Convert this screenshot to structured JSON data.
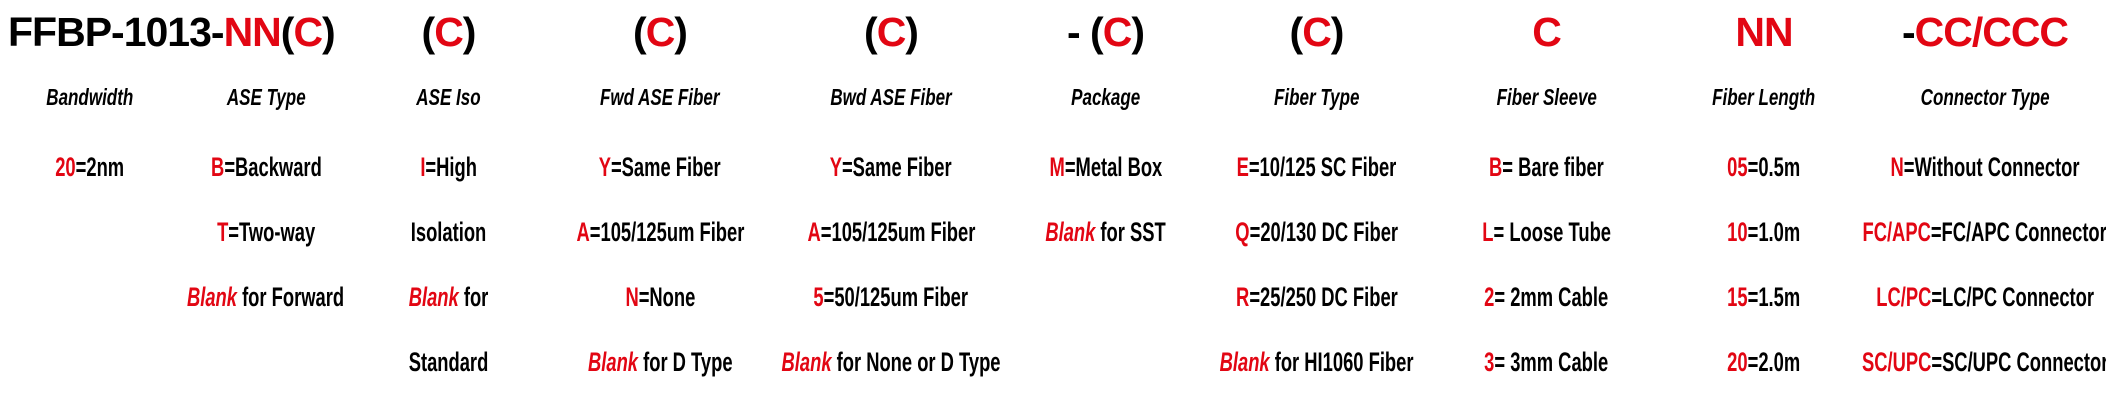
{
  "colors": {
    "red": "#e20613",
    "black": "#000000"
  },
  "code_row": [
    {
      "col": 1,
      "span": 2,
      "align": "left",
      "name": "part-number-prefix",
      "segments": [
        {
          "t": "FFBP-1013-"
        },
        {
          "t": "NN",
          "red": true
        },
        {
          "t": "("
        },
        {
          "t": "C",
          "red": true
        },
        {
          "t": ")"
        }
      ]
    },
    {
      "col": 3,
      "name": "code-ase-iso",
      "segments": [
        {
          "t": "("
        },
        {
          "t": "C",
          "red": true
        },
        {
          "t": ")"
        }
      ]
    },
    {
      "col": 4,
      "name": "code-fwd-ase-fiber",
      "segments": [
        {
          "t": "("
        },
        {
          "t": "C",
          "red": true
        },
        {
          "t": ")"
        }
      ]
    },
    {
      "col": 5,
      "name": "code-bwd-ase-fiber",
      "segments": [
        {
          "t": "("
        },
        {
          "t": "C",
          "red": true
        },
        {
          "t": ")"
        }
      ]
    },
    {
      "col": 6,
      "name": "code-package",
      "segments": [
        {
          "t": "- ("
        },
        {
          "t": "C",
          "red": true
        },
        {
          "t": ")"
        }
      ]
    },
    {
      "col": 7,
      "name": "code-fiber-type",
      "segments": [
        {
          "t": "("
        },
        {
          "t": "C",
          "red": true
        },
        {
          "t": ")"
        }
      ]
    },
    {
      "col": 8,
      "name": "code-fiber-sleeve",
      "segments": [
        {
          "t": "C",
          "red": true
        }
      ]
    },
    {
      "col": 9,
      "name": "code-fiber-length",
      "segments": [
        {
          "t": "NN",
          "red": true
        }
      ]
    },
    {
      "col": 10,
      "name": "code-connector-type",
      "segments": [
        {
          "t": "-"
        },
        {
          "t": "CC/CCC",
          "red": true
        }
      ]
    }
  ],
  "columns": [
    {
      "label": "Bandwidth",
      "rows": [
        [
          {
            "t": "20",
            "red": true
          },
          {
            "t": "=2nm"
          }
        ],
        [],
        [],
        []
      ]
    },
    {
      "label": "ASE Type",
      "rows": [
        [
          {
            "t": "B",
            "red": true
          },
          {
            "t": "=Backward"
          }
        ],
        [
          {
            "t": "T",
            "red": true
          },
          {
            "t": "=Two-way"
          }
        ],
        [
          {
            "t": "Blank",
            "red": true,
            "italic": true
          },
          {
            "t": " for Forward"
          }
        ],
        []
      ]
    },
    {
      "label": "ASE Iso",
      "rows": [
        [
          {
            "t": "I",
            "red": true
          },
          {
            "t": "=High"
          }
        ],
        [
          {
            "t": "Isolation"
          }
        ],
        [
          {
            "t": "Blank",
            "red": true,
            "italic": true
          },
          {
            "t": " for"
          }
        ],
        [
          {
            "t": "Standard"
          }
        ]
      ]
    },
    {
      "label": "Fwd ASE Fiber",
      "rows": [
        [
          {
            "t": "Y",
            "red": true
          },
          {
            "t": "=Same Fiber"
          }
        ],
        [
          {
            "t": "A",
            "red": true
          },
          {
            "t": "=105/125um Fiber"
          }
        ],
        [
          {
            "t": "N",
            "red": true
          },
          {
            "t": "=None"
          }
        ],
        [
          {
            "t": "Blank",
            "red": true,
            "italic": true
          },
          {
            "t": " for D Type"
          }
        ]
      ]
    },
    {
      "label": "Bwd ASE Fiber",
      "rows": [
        [
          {
            "t": "Y",
            "red": true
          },
          {
            "t": "=Same Fiber"
          }
        ],
        [
          {
            "t": "A",
            "red": true
          },
          {
            "t": "=105/125um Fiber"
          }
        ],
        [
          {
            "t": "5",
            "red": true
          },
          {
            "t": "=50/125um Fiber"
          }
        ],
        [
          {
            "t": "Blank",
            "red": true,
            "italic": true
          },
          {
            "t": " for None or D Type"
          }
        ]
      ]
    },
    {
      "label": "Package",
      "rows": [
        [
          {
            "t": "M",
            "red": true
          },
          {
            "t": "=Metal Box"
          }
        ],
        [
          {
            "t": "Blank",
            "red": true,
            "italic": true
          },
          {
            "t": " for SST"
          }
        ],
        [],
        []
      ]
    },
    {
      "label": "Fiber Type",
      "rows": [
        [
          {
            "t": "E",
            "red": true
          },
          {
            "t": "=10/125 SC Fiber"
          }
        ],
        [
          {
            "t": "Q",
            "red": true
          },
          {
            "t": "=20/130 DC Fiber"
          }
        ],
        [
          {
            "t": "R",
            "red": true
          },
          {
            "t": "=25/250 DC Fiber"
          }
        ],
        [
          {
            "t": "Blank",
            "red": true,
            "italic": true
          },
          {
            "t": " for HI1060 Fiber"
          }
        ]
      ]
    },
    {
      "label": "Fiber Sleeve",
      "rows": [
        [
          {
            "t": "B",
            "red": true
          },
          {
            "t": "= Bare fiber"
          }
        ],
        [
          {
            "t": "L",
            "red": true
          },
          {
            "t": "= Loose Tube"
          }
        ],
        [
          {
            "t": "2",
            "red": true
          },
          {
            "t": "= 2mm Cable"
          }
        ],
        [
          {
            "t": "3",
            "red": true
          },
          {
            "t": "= 3mm Cable"
          }
        ]
      ]
    },
    {
      "label": "Fiber Length",
      "rows": [
        [
          {
            "t": "05",
            "red": true
          },
          {
            "t": "=0.5m"
          }
        ],
        [
          {
            "t": "10",
            "red": true
          },
          {
            "t": "=1.0m"
          }
        ],
        [
          {
            "t": "15",
            "red": true
          },
          {
            "t": "=1.5m"
          }
        ],
        [
          {
            "t": "20",
            "red": true
          },
          {
            "t": "=2.0m"
          }
        ]
      ]
    },
    {
      "label": "Connector Type",
      "rows": [
        [
          {
            "t": "N",
            "red": true
          },
          {
            "t": "=Without Connector"
          }
        ],
        [
          {
            "t": "FC/APC",
            "red": true
          },
          {
            "t": "=FC/APC Connector"
          }
        ],
        [
          {
            "t": "LC/PC",
            "red": true
          },
          {
            "t": "=LC/PC Connector"
          }
        ],
        [
          {
            "t": "SC/UPC",
            "red": true
          },
          {
            "t": "=SC/UPC Connector"
          }
        ]
      ]
    }
  ]
}
